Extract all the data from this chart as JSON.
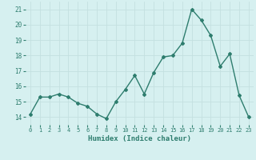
{
  "x": [
    0,
    1,
    2,
    3,
    4,
    5,
    6,
    7,
    8,
    9,
    10,
    11,
    12,
    13,
    14,
    15,
    16,
    17,
    18,
    19,
    20,
    21,
    22,
    23
  ],
  "y": [
    14.2,
    15.3,
    15.3,
    15.5,
    15.3,
    14.9,
    14.7,
    14.2,
    13.9,
    15.0,
    15.8,
    16.7,
    15.5,
    16.9,
    17.9,
    18.0,
    18.8,
    21.0,
    20.3,
    19.3,
    17.3,
    18.1,
    15.4,
    14.0
  ],
  "xlabel": "Humidex (Indice chaleur)",
  "ylim": [
    13.5,
    21.5
  ],
  "xlim": [
    -0.5,
    23.5
  ],
  "yticks": [
    14,
    15,
    16,
    17,
    18,
    19,
    20,
    21
  ],
  "xticks": [
    0,
    1,
    2,
    3,
    4,
    5,
    6,
    7,
    8,
    9,
    10,
    11,
    12,
    13,
    14,
    15,
    16,
    17,
    18,
    19,
    20,
    21,
    22,
    23
  ],
  "xtick_labels": [
    "0",
    "1",
    "2",
    "3",
    "4",
    "5",
    "6",
    "7",
    "8",
    "9",
    "10",
    "11",
    "12",
    "13",
    "14",
    "15",
    "16",
    "17",
    "18",
    "19",
    "20",
    "21",
    "22",
    "23"
  ],
  "line_color": "#2e7d6e",
  "marker": "D",
  "marker_size": 2,
  "bg_color": "#d6f0f0",
  "grid_color": "#c4e0e0",
  "tick_color": "#2e7d6e",
  "line_width": 1.0
}
